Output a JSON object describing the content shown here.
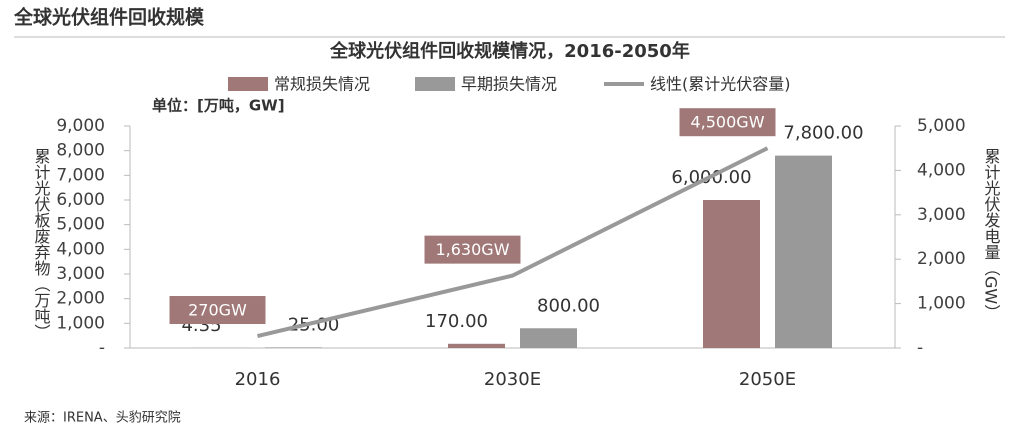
{
  "header": {
    "title": "全球光伏组件回收规模"
  },
  "chart_data": {
    "type": "bar",
    "title": "全球光伏组件回收规模情况，2016-2050年",
    "unit_note": "单位：[万吨，GW]",
    "ylabel": "累计光伏板废弃物（万吨）",
    "y2label": "累计光伏发电量（GW）",
    "categories": [
      "2016",
      "2030E",
      "2050E"
    ],
    "series": [
      {
        "name": "常规损失情况",
        "type": "bar",
        "color": "#a07878",
        "values": [
          4.35,
          170,
          6000
        ],
        "value_labels": [
          "4.35",
          "170.00",
          "6,000.00"
        ]
      },
      {
        "name": "早期损失情况",
        "type": "bar",
        "color": "#999999",
        "values": [
          25,
          800,
          7800
        ],
        "value_labels": [
          "25.00",
          "800.00",
          "7,800.00"
        ]
      },
      {
        "name": "线性(累计光伏容量)",
        "type": "line",
        "axis": "y2",
        "color": "#999999",
        "values": [
          270,
          1630,
          4500
        ],
        "value_labels": [
          "270GW",
          "1,630GW",
          "4,500GW"
        ]
      }
    ],
    "ylim": [
      0,
      9000
    ],
    "yticks": [
      {
        "value": 0,
        "label": "-"
      },
      {
        "value": 1000,
        "label": "1,000"
      },
      {
        "value": 2000,
        "label": "2,000"
      },
      {
        "value": 3000,
        "label": "3,000"
      },
      {
        "value": 4000,
        "label": "4,000"
      },
      {
        "value": 5000,
        "label": "5,000"
      },
      {
        "value": 6000,
        "label": "6,000"
      },
      {
        "value": 7000,
        "label": "7,000"
      },
      {
        "value": 8000,
        "label": "8,000"
      },
      {
        "value": 9000,
        "label": "9,000"
      }
    ],
    "y2lim": [
      0,
      5000
    ],
    "y2ticks": [
      {
        "value": 0,
        "label": "-"
      },
      {
        "value": 1000,
        "label": "1,000"
      },
      {
        "value": 2000,
        "label": "2,000"
      },
      {
        "value": 3000,
        "label": "3,000"
      },
      {
        "value": 4000,
        "label": "4,000"
      },
      {
        "value": 5000,
        "label": "5,000"
      }
    ],
    "grid": false,
    "legend": "top",
    "source": "来源：IRENA、头豹研究院"
  }
}
